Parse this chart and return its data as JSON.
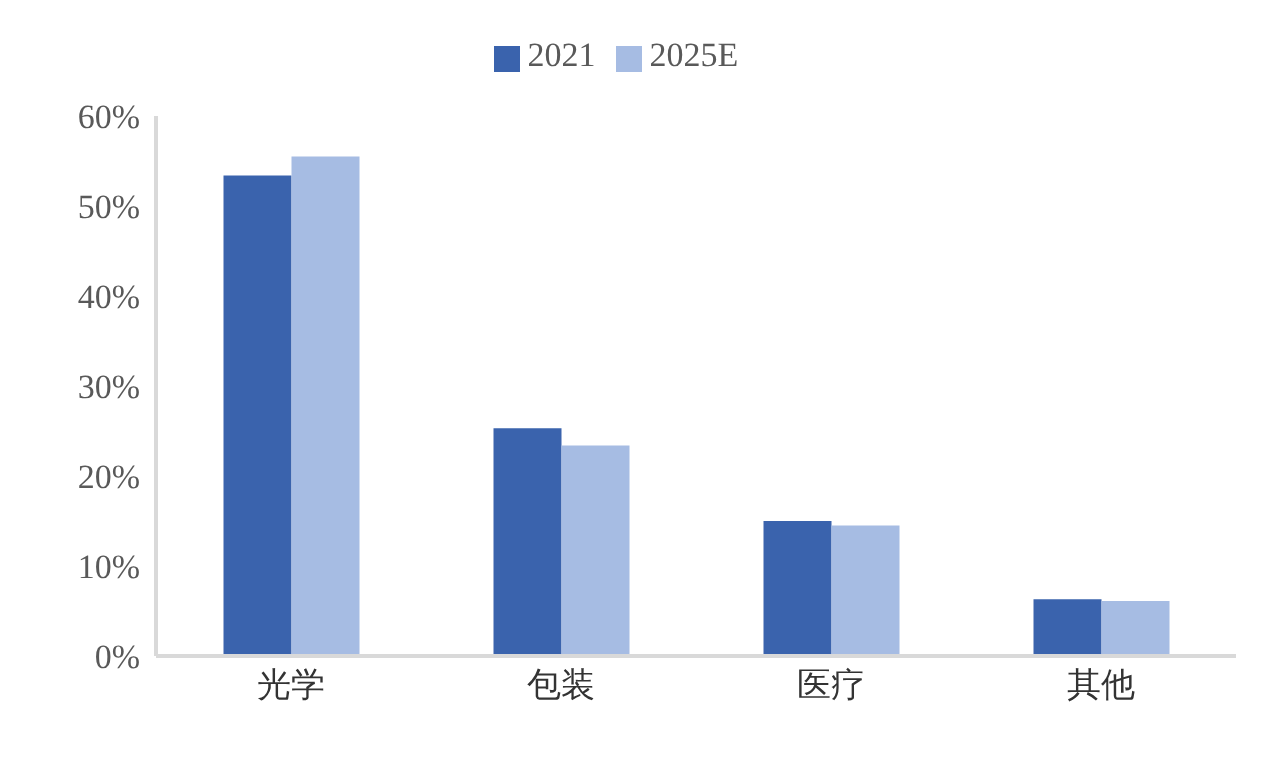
{
  "chart_data": {
    "type": "bar",
    "categories": [
      "光学",
      "包装",
      "医疗",
      "其他"
    ],
    "series": [
      {
        "name": "2021",
        "color": "#3a63ad",
        "values": [
          53.4,
          25.3,
          15.0,
          6.3
        ]
      },
      {
        "name": "2025E",
        "color": "#a6bce3",
        "values": [
          55.5,
          23.4,
          14.5,
          6.1
        ]
      }
    ],
    "ylim": [
      0,
      60
    ],
    "yticks": [
      {
        "value": 0,
        "label": "0%"
      },
      {
        "value": 10,
        "label": "10%"
      },
      {
        "value": 20,
        "label": "20%"
      },
      {
        "value": 30,
        "label": "30%"
      },
      {
        "value": 40,
        "label": "40%"
      },
      {
        "value": 50,
        "label": "50%"
      },
      {
        "value": 60,
        "label": "60%"
      }
    ],
    "grid": false,
    "legend": "top"
  }
}
